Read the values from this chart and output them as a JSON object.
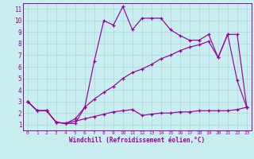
{
  "xlabel": "Windchill (Refroidissement éolien,°C)",
  "bg_color": "#c8eef0",
  "line_color": "#990099",
  "grid_color": "#aadddd",
  "xlim": [
    -0.5,
    23.5
  ],
  "ylim": [
    0.5,
    11.5
  ],
  "xticks": [
    0,
    1,
    2,
    3,
    4,
    5,
    6,
    7,
    8,
    9,
    10,
    11,
    12,
    13,
    14,
    15,
    16,
    17,
    18,
    19,
    20,
    21,
    22,
    23
  ],
  "yticks": [
    1,
    2,
    3,
    4,
    5,
    6,
    7,
    8,
    9,
    10,
    11
  ],
  "curve1_x": [
    0,
    1,
    2,
    3,
    4,
    5,
    6,
    7,
    8,
    9,
    10,
    11,
    12,
    13,
    14,
    15,
    16,
    17,
    18,
    19,
    20,
    21,
    22,
    23
  ],
  "curve1_y": [
    3.0,
    2.2,
    2.2,
    1.2,
    1.1,
    1.1,
    2.5,
    6.5,
    10.0,
    9.6,
    11.2,
    9.2,
    10.2,
    10.2,
    10.2,
    9.2,
    8.7,
    8.3,
    8.3,
    8.8,
    6.8,
    8.8,
    8.8,
    2.5
  ],
  "curve2_x": [
    0,
    1,
    2,
    3,
    4,
    5,
    6,
    7,
    8,
    9,
    10,
    11,
    12,
    13,
    14,
    15,
    16,
    17,
    18,
    19,
    20,
    21,
    22,
    23
  ],
  "curve2_y": [
    3.0,
    2.2,
    2.2,
    1.2,
    1.1,
    1.5,
    2.5,
    3.2,
    3.8,
    4.3,
    5.0,
    5.5,
    5.8,
    6.2,
    6.7,
    7.0,
    7.4,
    7.7,
    7.9,
    8.2,
    6.8,
    8.8,
    4.8,
    2.5
  ],
  "curve3_x": [
    0,
    1,
    2,
    3,
    4,
    5,
    6,
    7,
    8,
    9,
    10,
    11,
    12,
    13,
    14,
    15,
    16,
    17,
    18,
    19,
    20,
    21,
    22,
    23
  ],
  "curve3_y": [
    3.0,
    2.2,
    2.2,
    1.2,
    1.1,
    1.3,
    1.5,
    1.7,
    1.9,
    2.1,
    2.2,
    2.3,
    1.8,
    1.9,
    2.0,
    2.0,
    2.1,
    2.1,
    2.2,
    2.2,
    2.2,
    2.2,
    2.3,
    2.5
  ]
}
